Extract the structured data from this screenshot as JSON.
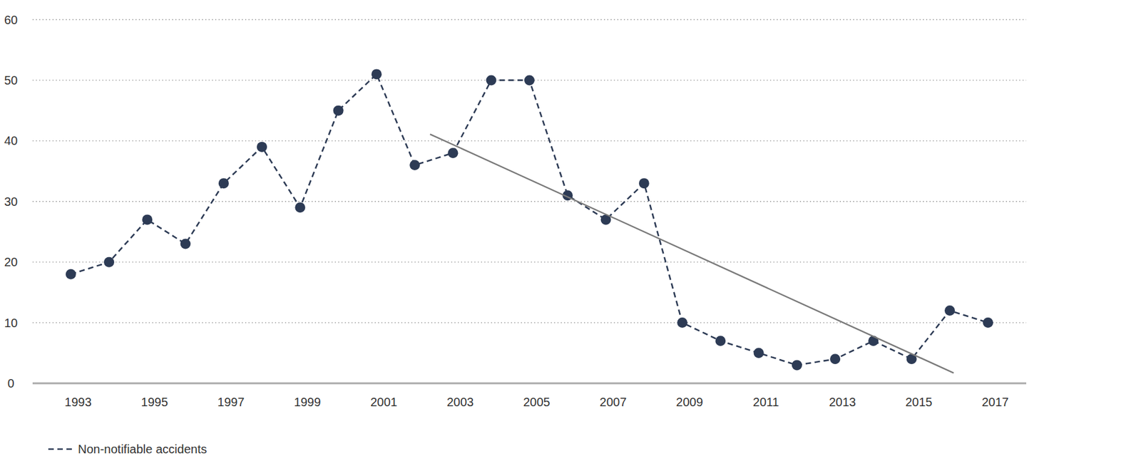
{
  "chart_data": {
    "type": "line",
    "x": [
      1993,
      1994,
      1995,
      1996,
      1997,
      1998,
      1999,
      2000,
      2001,
      2002,
      2003,
      2004,
      2005,
      2006,
      2007,
      2008,
      2009,
      2010,
      2011,
      2012,
      2013,
      2014,
      2015,
      2016,
      2017
    ],
    "series": [
      {
        "name": "Non-notifiable accidents",
        "color": "#2d3b55",
        "marker": "circle",
        "line_style": "dashed",
        "values": [
          18,
          20,
          27,
          23,
          33,
          39,
          29,
          45,
          51,
          36,
          38,
          50,
          50,
          31,
          27,
          33,
          10,
          7,
          5,
          3,
          4,
          7,
          4,
          12,
          10
        ]
      },
      {
        "color": "#7a7a7a",
        "marker": "none",
        "line_style": "solid",
        "x": [
          2002.4,
          2016.1
        ],
        "values": [
          41.1,
          1.7
        ]
      }
    ],
    "xlim": [
      1992,
      2018
    ],
    "xticks": [
      1993,
      1995,
      1997,
      1999,
      2001,
      2003,
      2005,
      2007,
      2009,
      2011,
      2013,
      2015,
      2017
    ],
    "ylim": [
      0,
      60
    ],
    "yticks": [
      0,
      10,
      20,
      30,
      40,
      50,
      60
    ],
    "grid": true,
    "legend": "bottom-left"
  }
}
